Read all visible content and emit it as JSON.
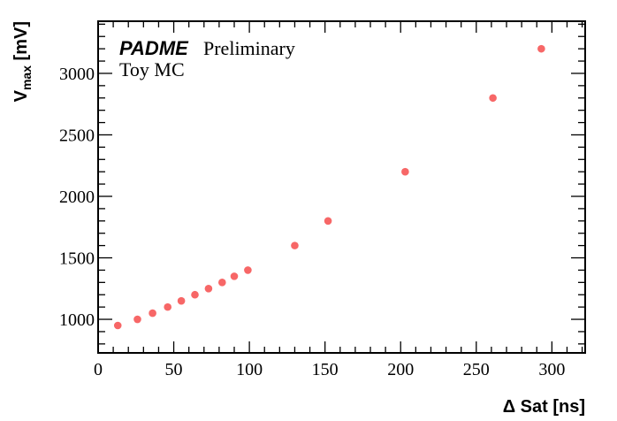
{
  "chart_data": {
    "type": "scatter",
    "title": "",
    "xlabel": "Δ Sat [ns]",
    "ylabel_main": "V",
    "ylabel_sub": "max",
    "ylabel_unit": " [mV]",
    "xlim": [
      0,
      322
    ],
    "ylim": [
      727,
      3424
    ],
    "grid": false,
    "x_ticks": [
      0,
      50,
      100,
      150,
      200,
      250,
      300
    ],
    "x_tick_labels": [
      "0",
      "50",
      "100",
      "150",
      "200",
      "250",
      "300"
    ],
    "y_ticks": [
      1000,
      1500,
      2000,
      2500,
      3000
    ],
    "y_tick_labels": [
      "1000",
      "1500",
      "2000",
      "2500",
      "3000"
    ],
    "annotations": {
      "experiment": "PADME",
      "status": "Preliminary",
      "sample": "Toy MC"
    },
    "marker_color": "#f76767",
    "series": [
      {
        "name": "Toy MC",
        "x": [
          13,
          26,
          36,
          46,
          55,
          64,
          73,
          82,
          90,
          99,
          130,
          152,
          203,
          261,
          293
        ],
        "y": [
          950,
          1000,
          1050,
          1100,
          1150,
          1200,
          1250,
          1300,
          1350,
          1400,
          1600,
          1800,
          2200,
          2800,
          3200
        ]
      }
    ]
  }
}
